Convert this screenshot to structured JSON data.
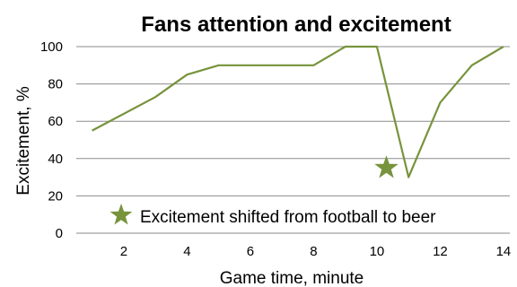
{
  "chart_data": {
    "type": "line",
    "title": "Fans attention and excitement",
    "xlabel": "Game time, minute",
    "ylabel": "Excitement, %",
    "xlim": [
      0.5,
      14.2
    ],
    "ylim": [
      0,
      100
    ],
    "xticks": [
      2,
      4,
      6,
      8,
      10,
      12,
      14
    ],
    "yticks": [
      0,
      20,
      40,
      60,
      80,
      100
    ],
    "grid": "horizontal",
    "series": [
      {
        "color": "#77933c",
        "x": [
          1,
          3,
          4,
          5,
          6,
          7,
          8,
          9,
          10,
          11,
          12,
          13,
          14
        ],
        "y": [
          55,
          73,
          85,
          90,
          90,
          90,
          90,
          100,
          100,
          30,
          70,
          90,
          100
        ]
      }
    ],
    "star_marker": {
      "x": 10.3,
      "y": 35,
      "color": "#77933c"
    },
    "annotation": {
      "text": "Excitement shifted from football to beer",
      "color": "#77933c"
    }
  }
}
